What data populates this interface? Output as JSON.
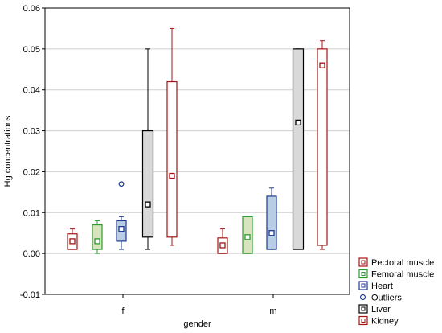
{
  "chart_data": {
    "type": "box",
    "title": "",
    "xlabel": "gender",
    "ylabel": "Hg concentrations",
    "ylim": [
      -0.01,
      0.06
    ],
    "yticks": [
      -0.01,
      0.0,
      0.01,
      0.02,
      0.03,
      0.04,
      0.05,
      0.06
    ],
    "ytick_labels": [
      "-0.01",
      "0.00",
      "0.01",
      "0.02",
      "0.03",
      "0.04",
      "0.05",
      "0.06"
    ],
    "grid": true,
    "legend_position": "right-bottom",
    "categories": [
      "f",
      "m"
    ],
    "series": [
      {
        "name": "Pectoral muscle",
        "color": "#a31515",
        "fill": "#ffffff",
        "groups": [
          {
            "category": "f",
            "median": 0.003,
            "q1": 0.001,
            "q3": 0.0048,
            "min": 0.001,
            "max": 0.006,
            "outliers": []
          },
          {
            "category": "m",
            "median": 0.002,
            "q1": 0.0,
            "q3": 0.0038,
            "min": 0.0,
            "max": 0.006,
            "outliers": []
          }
        ]
      },
      {
        "name": "Femoral muscle",
        "color": "#2e9a2e",
        "fill": "#d7e4bd",
        "groups": [
          {
            "category": "f",
            "median": 0.003,
            "q1": 0.001,
            "q3": 0.007,
            "min": 0.0,
            "max": 0.008,
            "outliers": []
          },
          {
            "category": "m",
            "median": 0.004,
            "q1": 0.0,
            "q3": 0.009,
            "min": 0.0,
            "max": 0.009,
            "outliers": []
          }
        ]
      },
      {
        "name": "Heart",
        "color": "#1f3a93",
        "fill": "#b9cde5",
        "groups": [
          {
            "category": "f",
            "median": 0.006,
            "q1": 0.003,
            "q3": 0.008,
            "min": 0.001,
            "max": 0.009,
            "outliers": [
              0.017
            ]
          },
          {
            "category": "m",
            "median": 0.005,
            "q1": 0.001,
            "q3": 0.014,
            "min": 0.001,
            "max": 0.016,
            "outliers": []
          }
        ]
      },
      {
        "name": "Liver",
        "color": "#000000",
        "fill": "#d9d9d9",
        "groups": [
          {
            "category": "f",
            "median": 0.012,
            "q1": 0.004,
            "q3": 0.03,
            "min": 0.001,
            "max": 0.05,
            "outliers": []
          },
          {
            "category": "m",
            "median": 0.032,
            "q1": 0.001,
            "q3": 0.05,
            "min": 0.001,
            "max": 0.05,
            "outliers": []
          }
        ]
      },
      {
        "name": "Kidney",
        "color": "#a31515",
        "fill": "#ffffff",
        "groups": [
          {
            "category": "f",
            "median": 0.019,
            "q1": 0.004,
            "q3": 0.042,
            "min": 0.002,
            "max": 0.055,
            "outliers": []
          },
          {
            "category": "m",
            "median": 0.046,
            "q1": 0.002,
            "q3": 0.05,
            "min": 0.001,
            "max": 0.052,
            "outliers": []
          }
        ]
      }
    ]
  },
  "legend": {
    "items": [
      {
        "label": "Pectoral muscle",
        "kind": "box",
        "color": "#a31515",
        "fill": "#ffffff"
      },
      {
        "label": "Femoral muscle",
        "kind": "box",
        "color": "#2e9a2e",
        "fill": "#ffffff"
      },
      {
        "label": "Heart",
        "kind": "box",
        "color": "#1f3a93",
        "fill": "#ffffff"
      },
      {
        "label": "Outliers",
        "kind": "circle",
        "color": "#1f3a93",
        "fill": "#ffffff"
      },
      {
        "label": "Liver",
        "kind": "box",
        "color": "#000000",
        "fill": "#ffffff"
      },
      {
        "label": "Kidney",
        "kind": "box",
        "color": "#a31515",
        "fill": "#ffffff"
      }
    ]
  }
}
